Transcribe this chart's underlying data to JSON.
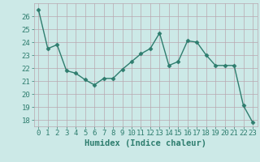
{
  "x": [
    0,
    1,
    2,
    3,
    4,
    5,
    6,
    7,
    8,
    9,
    10,
    11,
    12,
    13,
    14,
    15,
    16,
    17,
    18,
    19,
    20,
    21,
    22,
    23
  ],
  "y": [
    26.5,
    23.5,
    23.8,
    21.8,
    21.6,
    21.1,
    20.7,
    21.2,
    21.2,
    21.9,
    22.5,
    23.1,
    23.5,
    24.7,
    22.2,
    22.5,
    24.1,
    24.0,
    23.0,
    22.2,
    22.2,
    22.2,
    19.1,
    17.8
  ],
  "line_color": "#2e7d6e",
  "marker": "D",
  "marker_size": 2.5,
  "bg_color": "#cce9e7",
  "grid_color": "#b8a8b0",
  "xlabel": "Humidex (Indice chaleur)",
  "ylim": [
    17.5,
    27.0
  ],
  "xlim": [
    -0.5,
    23.5
  ],
  "yticks": [
    18,
    19,
    20,
    21,
    22,
    23,
    24,
    25,
    26
  ],
  "xticks": [
    0,
    1,
    2,
    3,
    4,
    5,
    6,
    7,
    8,
    9,
    10,
    11,
    12,
    13,
    14,
    15,
    16,
    17,
    18,
    19,
    20,
    21,
    22,
    23
  ],
  "tick_color": "#2e7d6e",
  "xlabel_fontsize": 7.5,
  "tick_fontsize": 6.5,
  "line_width": 1.0
}
